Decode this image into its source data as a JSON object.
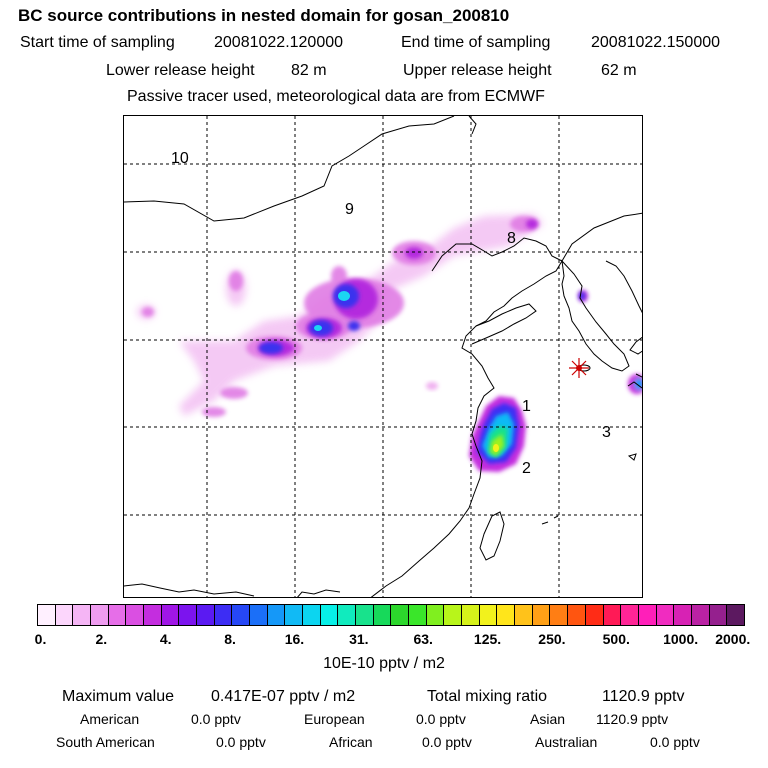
{
  "header": {
    "title": "BC  source contributions in nested domain for gosan_200810",
    "start_label": "Start time of sampling",
    "start_value": "20081022.120000",
    "end_label": "End time of sampling",
    "end_value": "20081022.150000",
    "lower_label": "Lower release height",
    "lower_value": "82 m",
    "upper_label": "Upper release height",
    "upper_value": "62 m",
    "note": "Passive tracer used, meteorological data are from ECMWF"
  },
  "map": {
    "region_labels": [
      "10",
      "9",
      "8",
      "1",
      "3",
      "2"
    ],
    "station_marker": "gosan-station-star",
    "colors": {
      "coast": "#000000",
      "grid": "#000000",
      "station": "#ff0000"
    }
  },
  "colorbar": {
    "tick_labels": [
      "0.",
      "2.",
      "4.",
      "8.",
      "16.",
      "31.",
      "63.",
      "125.",
      "250.",
      "500.",
      "1000.",
      "2000."
    ],
    "colors": [
      "#fff0ff",
      "#fcd6fc",
      "#f5b5f5",
      "#ef9cf0",
      "#e66ee8",
      "#da4fe2",
      "#c42ddf",
      "#a016e6",
      "#7c14ee",
      "#5b1af2",
      "#3d2df4",
      "#2647f6",
      "#1b6ff8",
      "#1598f8",
      "#11baf5",
      "#0cd5f0",
      "#07f0e8",
      "#10ebbe",
      "#18e28c",
      "#17d95a",
      "#2cd72c",
      "#3ae62a",
      "#80ef1f",
      "#b8f51a",
      "#d6f21a",
      "#f2f21c",
      "#ffe51b",
      "#ffc21a",
      "#ffa016",
      "#ff7e14",
      "#ff5510",
      "#ff2c16",
      "#ff1a56",
      "#ff2596",
      "#ff1fb9",
      "#f02cc0",
      "#d722b4",
      "#ba22a4",
      "#95208e",
      "#5c1960"
    ],
    "unit": "10E-10 pptv / m2"
  },
  "footer": {
    "max_label": "Maximum value",
    "max_value": "0.417E-07 pptv / m2",
    "total_label": "Total mixing ratio",
    "total_value": "1120.9 pptv",
    "sources": [
      {
        "name": "American",
        "value": "0.0 pptv"
      },
      {
        "name": "European",
        "value": "0.0 pptv"
      },
      {
        "name": "Asian",
        "value": "1120.9 pptv"
      },
      {
        "name": "South American",
        "value": "0.0 pptv"
      },
      {
        "name": "African",
        "value": "0.0 pptv"
      },
      {
        "name": "Australian",
        "value": "0.0 pptv"
      }
    ]
  }
}
